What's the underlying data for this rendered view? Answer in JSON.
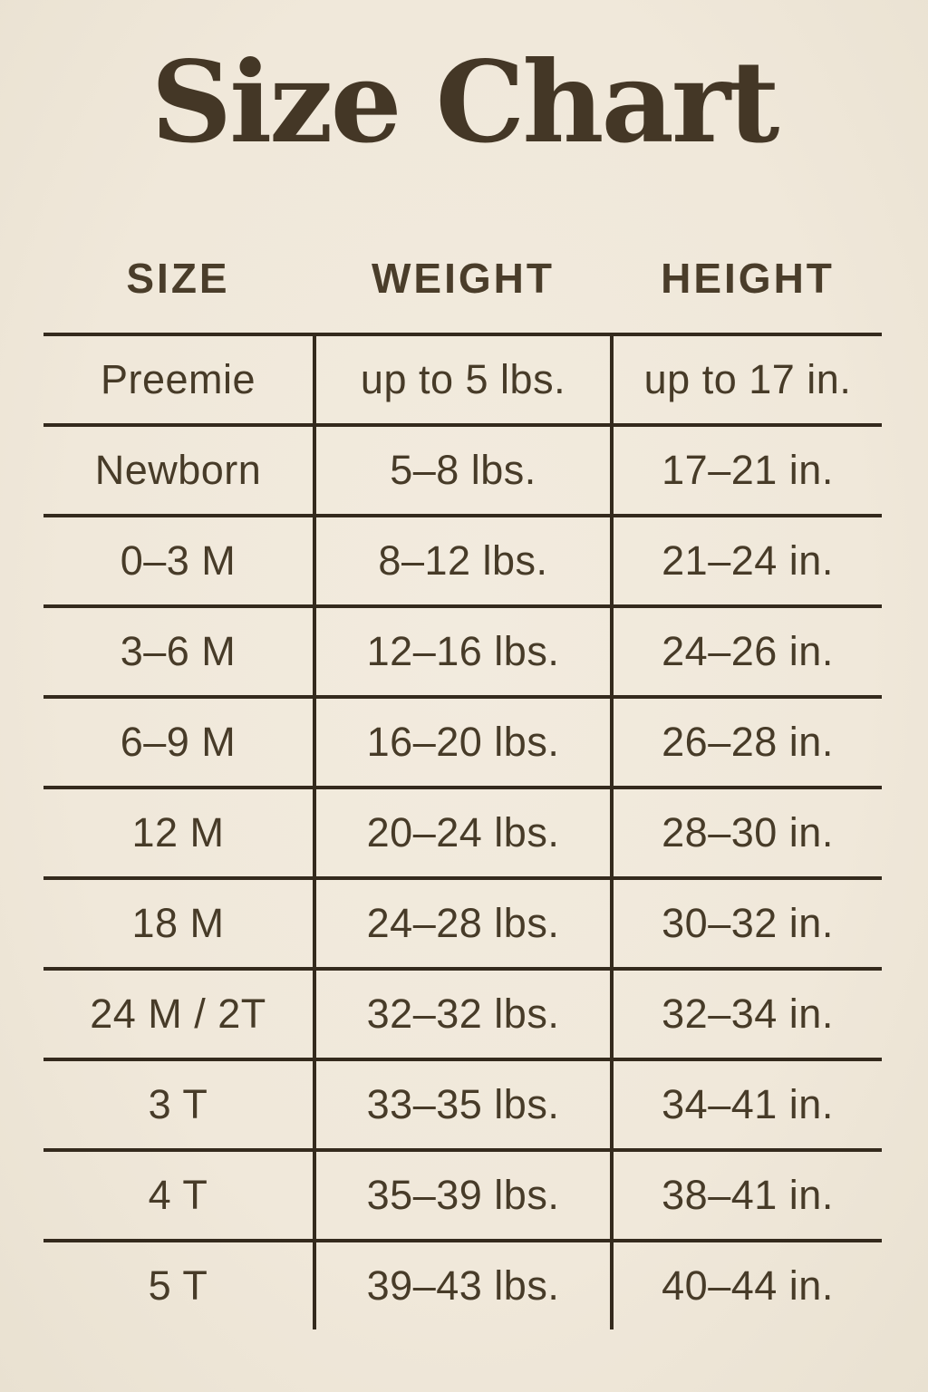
{
  "colors": {
    "background": "#f1e9db",
    "text": "#473b28",
    "title": "#443726",
    "grid_line": "#342a1d"
  },
  "chart_data": {
    "type": "table",
    "title": "Size Chart",
    "columns": [
      "SIZE",
      "WEIGHT",
      "HEIGHT"
    ],
    "rows": [
      [
        "Preemie",
        "up to 5 lbs.",
        "up to 17 in."
      ],
      [
        "Newborn",
        "5–8 lbs.",
        "17–21 in."
      ],
      [
        "0–3 M",
        "8–12 lbs.",
        "21–24 in."
      ],
      [
        "3–6 M",
        "12–16 lbs.",
        "24–26 in."
      ],
      [
        "6–9 M",
        "16–20 lbs.",
        "26–28 in."
      ],
      [
        "12 M",
        "20–24 lbs.",
        "28–30 in."
      ],
      [
        "18 M",
        "24–28 lbs.",
        "30–32 in."
      ],
      [
        "24 M / 2T",
        "32–32 lbs.",
        "32–34 in."
      ],
      [
        "3 T",
        "33–35 lbs.",
        "34–41 in."
      ],
      [
        "4 T",
        "35–39 lbs.",
        "38–41 in."
      ],
      [
        "5 T",
        "39–43 lbs.",
        "40–44 in."
      ]
    ],
    "layout": {
      "grid": "horizontal rules between all rows; vertical rules flanking middle column only; no outer border; no rule below last row",
      "alignment": "all cells centered"
    }
  }
}
